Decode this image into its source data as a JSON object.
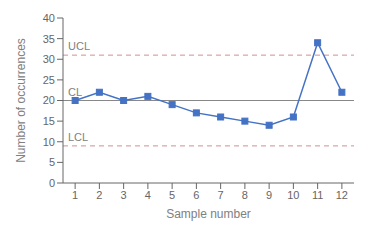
{
  "chart_data": {
    "type": "line",
    "x": [
      1,
      2,
      3,
      4,
      5,
      6,
      7,
      8,
      9,
      10,
      11,
      12
    ],
    "values": [
      20,
      22,
      20,
      21,
      19,
      17,
      16,
      15,
      14,
      16,
      34,
      22
    ],
    "color": "#4472c4",
    "marker": "square",
    "xlabel": "Sample number",
    "ylabel": "Number of occurrences",
    "xlim": [
      0.5,
      12.5
    ],
    "xticks": [
      1,
      2,
      3,
      4,
      5,
      6,
      7,
      8,
      9,
      10,
      11,
      12
    ],
    "ylim": [
      0,
      40
    ],
    "yticks": [
      0,
      5,
      10,
      15,
      20,
      25,
      30,
      35,
      40
    ],
    "grid": false,
    "reference_lines": [
      {
        "label": "UCL",
        "value": 31,
        "color": "#d09090",
        "line_style": "dashed"
      },
      {
        "label": "CL",
        "value": 20,
        "color": "#888888",
        "line_style": "solid"
      },
      {
        "label": "LCL",
        "value": 9,
        "color": "#d09090",
        "line_style": "dashed"
      }
    ]
  }
}
